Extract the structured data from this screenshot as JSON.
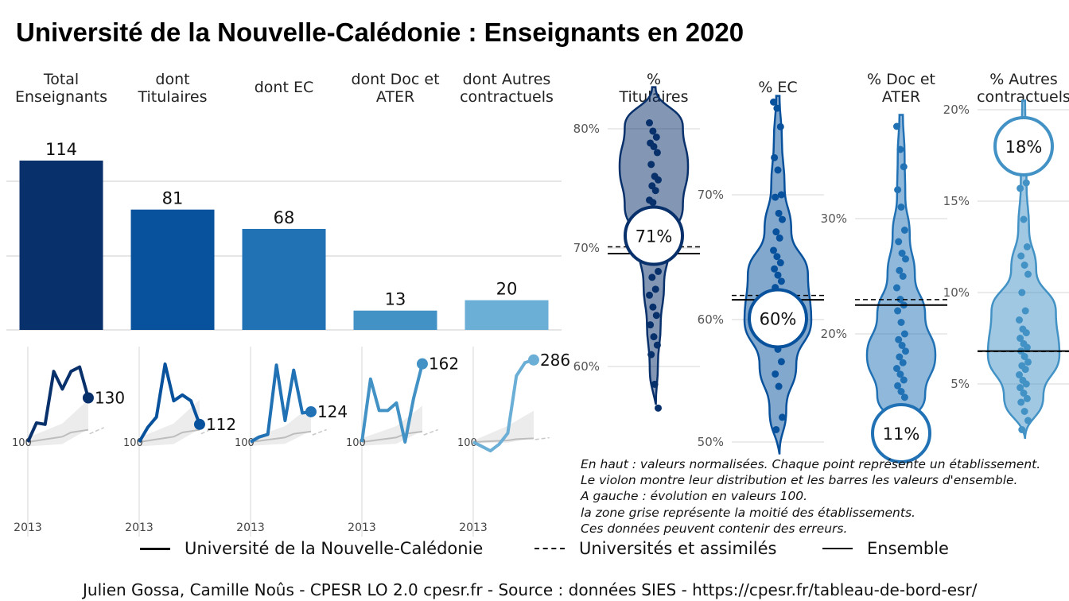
{
  "title": "Université de la Nouvelle-Calédonie  :  Enseignants en 2020",
  "chart_data": [
    {
      "type": "bar",
      "categories": [
        [
          "Total",
          "Enseignants"
        ],
        [
          "dont",
          "Titulaires"
        ],
        [
          "dont EC"
        ],
        [
          "dont Doc et",
          "ATER"
        ],
        [
          "dont Autres",
          "contractuels"
        ]
      ],
      "values": [
        114,
        81,
        68,
        13,
        20
      ],
      "colors": [
        "#08306b",
        "#08519c",
        "#2171b5",
        "#4292c6",
        "#6baed6"
      ]
    },
    {
      "type": "line",
      "x_tick_label": "2013",
      "baseline_label": "100",
      "panels": [
        {
          "series": [
            100,
            113,
            112,
            148,
            136,
            148,
            151,
            130
          ],
          "end_label": "130",
          "color": "#08306b"
        },
        {
          "series": [
            100,
            110,
            117,
            153,
            128,
            132,
            128,
            112
          ],
          "end_label": "112",
          "color": "#08519c"
        },
        {
          "series": [
            100,
            104,
            106,
            161,
            117,
            157,
            123,
            124
          ],
          "end_label": "124",
          "color": "#2171b5"
        },
        {
          "series": [
            100,
            150,
            125,
            125,
            131,
            100,
            135,
            162
          ],
          "end_label": "162",
          "color": "#4292c6"
        },
        {
          "series": [
            100,
            90,
            80,
            95,
            120,
            250,
            280,
            286
          ],
          "end_label": "286",
          "color": "#6baed6"
        }
      ],
      "series_names": [
        "Université de la Nouvelle-Calédonie",
        "Universités et assimilés",
        "Ensemble"
      ]
    },
    {
      "type": "scatter",
      "subtype": "violin",
      "panels": [
        {
          "label": [
            "%",
            "Titulaires"
          ],
          "yticks": [
            60,
            70,
            80
          ],
          "ylim": [
            56.8,
            83.5
          ],
          "value": 71,
          "value_label": "71%",
          "ensemble": 69.5,
          "universites": 69.8,
          "color": "#08306b",
          "points": [
            80.5,
            79.8,
            79.3,
            78.8,
            78.5,
            78,
            77,
            76,
            75.7,
            75.2,
            74.8,
            74,
            73.8,
            73,
            72.5,
            72,
            71.5,
            70.5,
            69.5,
            68,
            67.5,
            66.5,
            66,
            65,
            64.3,
            63.5,
            62.5,
            61.8,
            61,
            58.5,
            56.5
          ]
        },
        {
          "label": [
            "% EC"
          ],
          "yticks": [
            50,
            60,
            70
          ],
          "ylim": [
            49,
            78
          ],
          "value": 60,
          "value_label": "60%",
          "ensemble": 61.5,
          "universites": 61.6,
          "color": "#08519c",
          "points": [
            77.5,
            77,
            75.5,
            73,
            72,
            70,
            69.8,
            68.5,
            68,
            67,
            66.5,
            65.5,
            65,
            64.5,
            64,
            63.5,
            63,
            62.5,
            62,
            61.5,
            61,
            60.5,
            60,
            59.5,
            59,
            58.5,
            57.5,
            56.5,
            55.5,
            54.5,
            52,
            51
          ]
        },
        {
          "label": [
            "% Doc et",
            "ATER"
          ],
          "yticks": [
            20,
            30
          ],
          "ylim": [
            11.2,
            39
          ],
          "value": 11,
          "value_label": "11%",
          "ensemble": 22.5,
          "universites": 22.7,
          "color": "#2171b5",
          "points": [
            38,
            36,
            34.5,
            32.5,
            31,
            29,
            28,
            27,
            26.5,
            25.5,
            25,
            24,
            23,
            22.5,
            22,
            21,
            20,
            19.5,
            19,
            18.5,
            18,
            17.5,
            17,
            16.5,
            16,
            15.5,
            15,
            14.5
          ]
        },
        {
          "label": [
            "% Autres",
            "contractuels"
          ],
          "yticks": [
            5,
            10,
            15
          ],
          "ylim": [
            2,
            20.5
          ],
          "value": 18,
          "value_label": "18%",
          "ensemble": 6.8,
          "universites": 6.6,
          "color": "#4292c6",
          "points": [
            19.1,
            17,
            16,
            15.7,
            14,
            12.5,
            12,
            11.5,
            11,
            10,
            9,
            8.5,
            8,
            7.8,
            7.5,
            7.2,
            7,
            6.8,
            6.5,
            6.2,
            6,
            5.8,
            5.5,
            5.2,
            5,
            4.8,
            4.5,
            4.2,
            4,
            3.5,
            3,
            2.5
          ]
        }
      ]
    }
  ],
  "notes": [
    "En haut : valeurs normalisées. Chaque point représente un établissement.",
    "Le violon montre leur distribution et les barres les valeurs d'ensemble.",
    "A gauche : évolution en valeurs 100.",
    "la zone grise représente la moitié des établissements.",
    "Ces données peuvent contenir des erreurs."
  ],
  "legend": [
    {
      "label": "Université de la Nouvelle-Calédonie",
      "style": "solid-thick"
    },
    {
      "label": "Universités et assimilés",
      "style": "dashed"
    },
    {
      "label": "Ensemble",
      "style": "solid-thin"
    }
  ],
  "caption": "Julien Gossa, Camille Noûs - CPESR LO 2.0 cpesr.fr - Source : données SIES - https://cpesr.fr/tableau-de-bord-esr/"
}
